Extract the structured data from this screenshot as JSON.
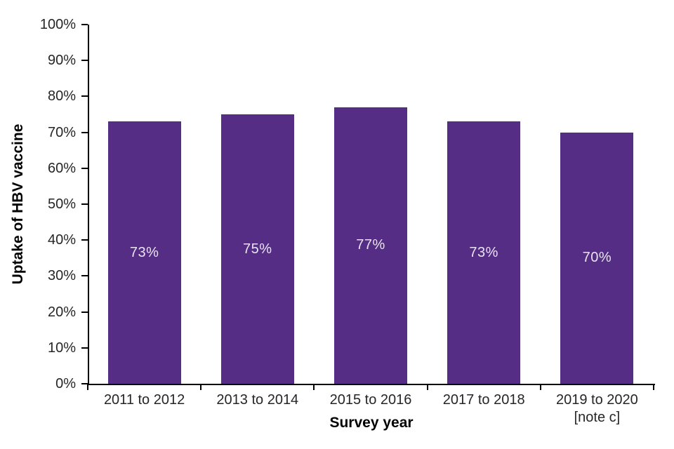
{
  "chart_data": {
    "type": "bar",
    "title": "",
    "xlabel": "Survey year",
    "ylabel": "Uptake of HBV vaccine",
    "categories": [
      "2011 to 2012",
      "2013 to 2014",
      "2015 to 2016",
      "2017 to 2018",
      "2019 to 2020"
    ],
    "category_notes": [
      "",
      "",
      "",
      "",
      "[note c]"
    ],
    "values": [
      73,
      75,
      77,
      73,
      70
    ],
    "data_labels": [
      "73%",
      "75%",
      "77%",
      "73%",
      "70%"
    ],
    "ylim": [
      0,
      100
    ],
    "ytick_step": 10,
    "ytick_labels": [
      "0%",
      "10%",
      "20%",
      "30%",
      "40%",
      "50%",
      "60%",
      "70%",
      "80%",
      "90%",
      "100%"
    ],
    "grid": "off",
    "legend": "none",
    "data_label_position": "center",
    "colors": {
      "bar": "#552D85",
      "data_label": "#E9E4F1",
      "axis": "#000000",
      "tick_label": "#262626",
      "background": "#FFFFFF"
    }
  }
}
